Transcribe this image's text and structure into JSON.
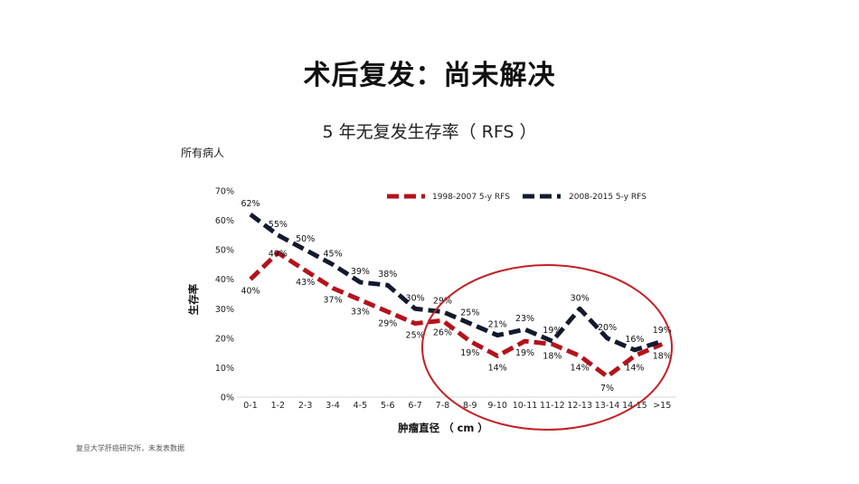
{
  "slide": {
    "title": "术后复发：尚未解决",
    "subtitle": "所有病人",
    "footnote": "复旦大学肝癌研究所，未发表数据"
  },
  "colors": {
    "series1": "#b5121b",
    "series2": "#141a2e",
    "highlight_circle": "#c41f26"
  },
  "chart_data": {
    "type": "line",
    "title": "5 年无复发生存率（ RFS ）",
    "xlabel": "肿瘤直径 （ cm ）",
    "ylabel": "生存率",
    "categories": [
      "0-1",
      "1-2",
      "2-3",
      "3-4",
      "4-5",
      "5-6",
      "6-7",
      "7-8",
      "8-9",
      "9-10",
      "10-11",
      "11-12",
      "12-13",
      "13-14",
      "14-15",
      ">15"
    ],
    "ylim": [
      0,
      70
    ],
    "yticks": [
      "0%",
      "10%",
      "20%",
      "30%",
      "40%",
      "50%",
      "60%",
      "70%"
    ],
    "legend_position": "top-right",
    "grid": false,
    "series": [
      {
        "name": "1998-2007 5-y RFS",
        "values": [
          40,
          49,
          43,
          37,
          33,
          29,
          25,
          26,
          19,
          14,
          19,
          18,
          14,
          7,
          14,
          18
        ],
        "labels": [
          "40%",
          "49%",
          "43%",
          "37%",
          "33%",
          "29%",
          "25%",
          "26%",
          "19%",
          "14%",
          "19%",
          "18%",
          "14%",
          "7%",
          "14%",
          "18%"
        ]
      },
      {
        "name": "2008-2015 5-y RFS",
        "values": [
          62,
          55,
          50,
          45,
          39,
          38,
          30,
          29,
          25,
          21,
          23,
          19,
          30,
          20,
          16,
          19
        ],
        "labels": [
          "62%",
          "55%",
          "50%",
          "45%",
          "39%",
          "38%",
          "30%",
          "29%",
          "25%",
          "21%",
          "23%",
          "19%",
          "30%",
          "20%",
          "16%",
          "19%"
        ]
      }
    ]
  }
}
